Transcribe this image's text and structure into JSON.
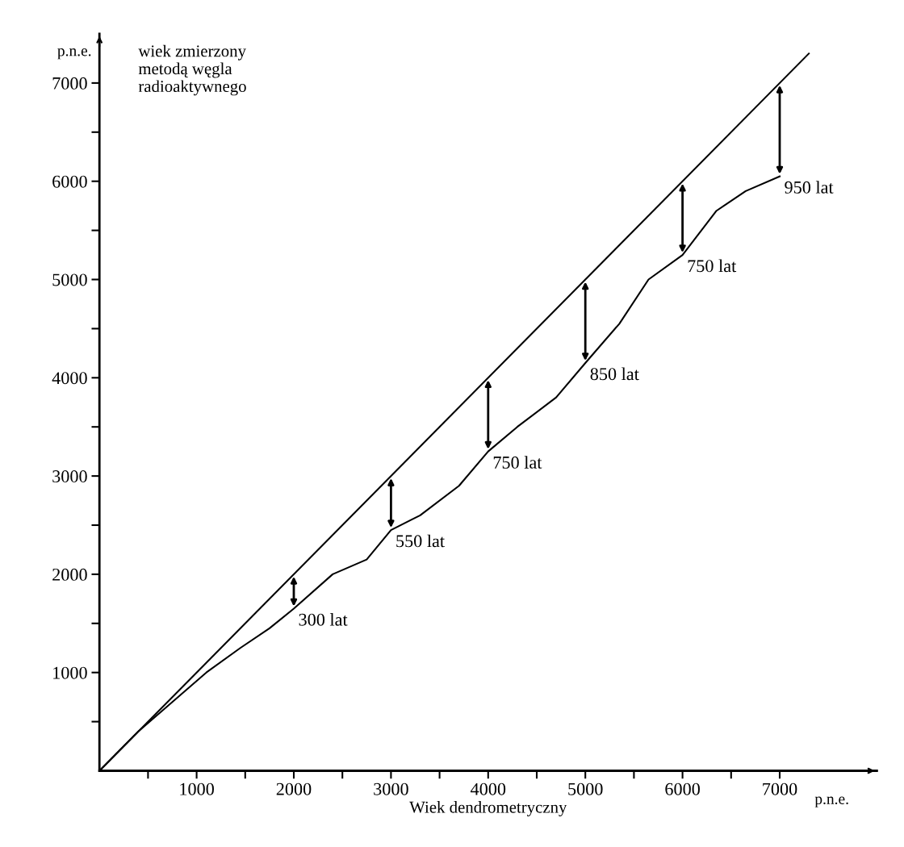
{
  "chart_data": {
    "type": "line",
    "xlabel": "Wiek dendrometryczny",
    "ylabel": "wiek zmierzony\nmetodą węgla\nradioaktywnego",
    "series": [
      {
        "color": "#000000",
        "x": [
          0,
          7300
        ],
        "values": [
          0,
          7300
        ]
      },
      {
        "color": "#000000",
        "x": [
          0,
          400,
          750,
          1100,
          1450,
          1750,
          2000,
          2400,
          2750,
          3000,
          3300,
          3700,
          4000,
          4300,
          4700,
          5000,
          5350,
          5650,
          6000,
          6350,
          6650,
          7000
        ],
        "values": [
          0,
          400,
          700,
          1000,
          1250,
          1450,
          1650,
          2000,
          2150,
          2450,
          2600,
          2900,
          3250,
          3500,
          3800,
          4150,
          4550,
          5000,
          5250,
          5700,
          5900,
          6050
        ]
      }
    ],
    "annotations": [
      "p.n.e.",
      "p.n.e.",
      {
        "text": "300 lat",
        "x": 2000,
        "y": 1650
      },
      {
        "text": "550 lat",
        "x": 3000,
        "y": 2450
      },
      {
        "text": "750 lat",
        "x": 4000,
        "y": 3250
      },
      {
        "text": "850 lat",
        "x": 5000,
        "y": 4150
      },
      {
        "text": "750 lat",
        "x": 6000,
        "y": 5250
      },
      {
        "text": "950 lat",
        "x": 7000,
        "y": 6050
      }
    ],
    "xlim": [
      0,
      8000
    ],
    "ylim": [
      0,
      7500
    ],
    "xticks": [
      {
        "value": 500,
        "label": null
      },
      1000,
      {
        "value": 1500,
        "label": null
      },
      2000,
      {
        "value": 2500,
        "label": null
      },
      3000,
      {
        "value": 3500,
        "label": null
      },
      4000,
      {
        "value": 4500,
        "label": null
      },
      5000,
      {
        "value": 5500,
        "label": null
      },
      6000,
      {
        "value": 6500,
        "label": null
      },
      7000
    ],
    "yticks": [
      {
        "value": 500,
        "label": null
      },
      1000,
      {
        "value": 1500,
        "label": null
      },
      2000,
      {
        "value": 2500,
        "label": null
      },
      3000,
      {
        "value": 3500,
        "label": null
      },
      4000,
      {
        "value": 4500,
        "label": null
      },
      5000,
      {
        "value": 5500,
        "label": null
      },
      6000,
      {
        "value": 6500,
        "label": null
      },
      7000
    ],
    "grid": false,
    "legend": false,
    "marker": "none",
    "line_style": "solid"
  }
}
